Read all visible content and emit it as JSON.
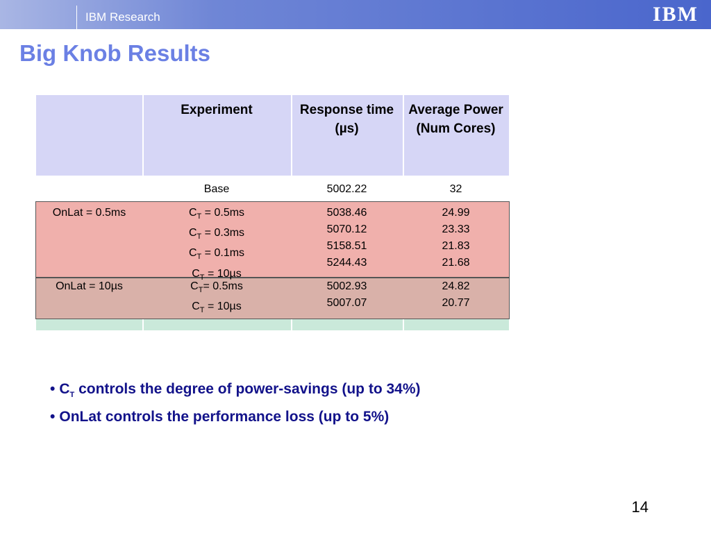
{
  "header": {
    "org": "IBM Research",
    "logo": "IBM"
  },
  "title": "Big Knob Results",
  "table": {
    "columns": [
      "Experiment",
      "Response time (µs)",
      "Average Power (Num Cores)"
    ],
    "base": {
      "experiment": "Base",
      "response": 5002.22,
      "power": 32
    },
    "groups": [
      {
        "label": "OnLat = 0.5ms",
        "rows": [
          {
            "experiment": {
              "base": "C",
              "sub": "T",
              "rest": " = 0.5ms"
            },
            "response": 5038.46,
            "power": 24.99
          },
          {
            "experiment": {
              "base": "C",
              "sub": "T",
              "rest": " = 0.3ms"
            },
            "response": 5070.12,
            "power": 23.33
          },
          {
            "experiment": {
              "base": "C",
              "sub": "T",
              "rest": " = 0.1ms"
            },
            "response": 5158.51,
            "power": 21.83
          },
          {
            "experiment": {
              "base": "C",
              "sub": "T",
              "rest": " = 10µs"
            },
            "response": 5244.43,
            "power": 21.68
          }
        ]
      },
      {
        "label": "OnLat = 10µs",
        "rows": [
          {
            "experiment": {
              "base": "C",
              "sub": "T",
              "rest": "= 0.5ms"
            },
            "response": 5002.93,
            "power": 24.82
          },
          {
            "experiment": {
              "base": "C",
              "sub": "T",
              "rest": " = 10µs"
            },
            "response": 5007.07,
            "power": 20.77
          }
        ]
      }
    ]
  },
  "bullets": [
    {
      "base": "C",
      "sub": "T",
      "rest": "  controls the degree of power-savings  (up to 34%)"
    },
    {
      "base": "",
      "sub": "",
      "rest": "OnLat controls the performance loss (up to 5%)"
    }
  ],
  "page_number": "14"
}
